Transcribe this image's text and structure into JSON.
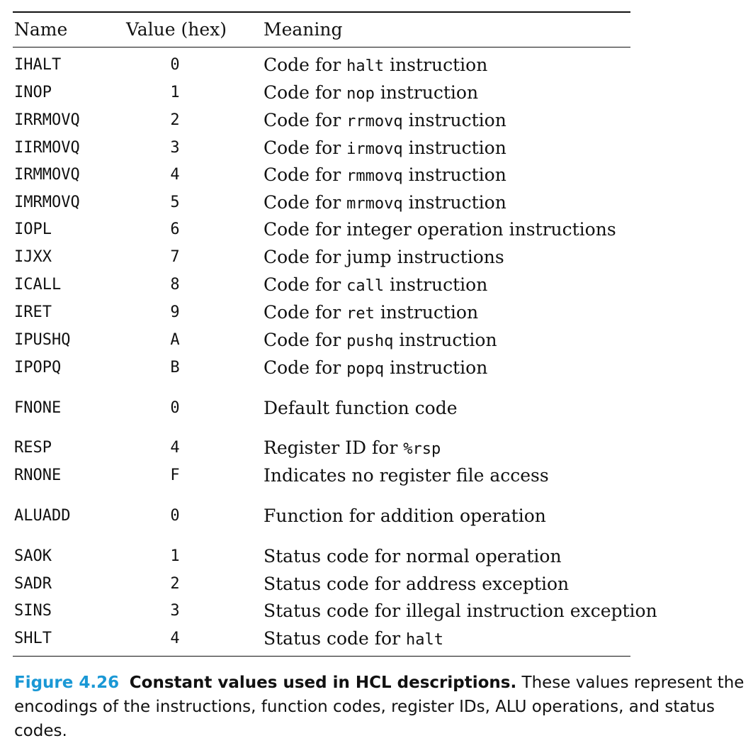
{
  "table": {
    "headers": {
      "name": "Name",
      "value": "Value (hex)",
      "meaning": "Meaning"
    },
    "rows": [
      {
        "name": "IHALT",
        "value": "0",
        "pre": "Code for ",
        "code": "halt",
        "post": " instruction"
      },
      {
        "name": "INOP",
        "value": "1",
        "pre": "Code for ",
        "code": "nop",
        "post": " instruction"
      },
      {
        "name": "IRRMOVQ",
        "value": "2",
        "pre": "Code for ",
        "code": "rrmovq",
        "post": " instruction"
      },
      {
        "name": "IIRMOVQ",
        "value": "3",
        "pre": "Code for ",
        "code": "irmovq",
        "post": " instruction"
      },
      {
        "name": "IRMMOVQ",
        "value": "4",
        "pre": "Code for ",
        "code": "rmmovq",
        "post": " instruction"
      },
      {
        "name": "IMRMOVQ",
        "value": "5",
        "pre": "Code for ",
        "code": "mrmovq",
        "post": " instruction"
      },
      {
        "name": "IOPL",
        "value": "6",
        "pre": "Code for integer operation instructions",
        "code": "",
        "post": ""
      },
      {
        "name": "IJXX",
        "value": "7",
        "pre": "Code for jump instructions",
        "code": "",
        "post": ""
      },
      {
        "name": "ICALL",
        "value": "8",
        "pre": "Code for ",
        "code": "call",
        "post": " instruction"
      },
      {
        "name": "IRET",
        "value": "9",
        "pre": "Code for ",
        "code": "ret",
        "post": " instruction"
      },
      {
        "name": "IPUSHQ",
        "value": "A",
        "pre": "Code for ",
        "code": "pushq",
        "post": " instruction"
      },
      {
        "name": "IPOPQ",
        "value": "B",
        "pre": "Code for ",
        "code": "popq",
        "post": " instruction"
      },
      {
        "name": "FNONE",
        "value": "0",
        "pre": "Default function code",
        "code": "",
        "post": ""
      },
      {
        "name": "RESP",
        "value": "4",
        "pre": "Register ID for ",
        "code": "%rsp",
        "post": ""
      },
      {
        "name": "RNONE",
        "value": "F",
        "pre": "Indicates no register file access",
        "code": "",
        "post": ""
      },
      {
        "name": "ALUADD",
        "value": "0",
        "pre": "Function for addition operation",
        "code": "",
        "post": ""
      },
      {
        "name": "SAOK",
        "value": "1",
        "pre": "Status code for normal operation",
        "code": "",
        "post": ""
      },
      {
        "name": "SADR",
        "value": "2",
        "pre": "Status code for address exception",
        "code": "",
        "post": ""
      },
      {
        "name": "SINS",
        "value": "3",
        "pre": "Status code for illegal instruction exception",
        "code": "",
        "post": ""
      },
      {
        "name": "SHLT",
        "value": "4",
        "pre": "Status code for ",
        "code": "halt",
        "post": ""
      }
    ]
  },
  "caption": {
    "label": "Figure 4.26",
    "title": "Constant values used in HCL descriptions.",
    "text": " These values represent the encodings of the instructions, function codes, register IDs, ALU operations, and status codes."
  }
}
